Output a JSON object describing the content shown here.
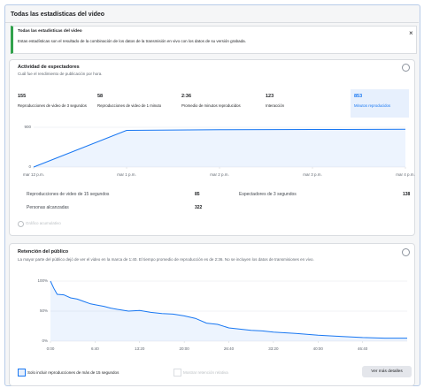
{
  "header": {
    "title": "Todas las estadísticas del video"
  },
  "banner": {
    "title": "Todas las estadísticas del video",
    "text": "Estas estadísticas son el resultado de la combinación de los datos de la transmisión en vivo con los datos de su versión grabada.",
    "close": "×"
  },
  "activity": {
    "title": "Actividad de espectadores",
    "subtitle": "Cuál fue el rendimiento de publicación por hora.",
    "metrics": [
      {
        "value": "155",
        "label": "Reproducciones de video de 3 segundos"
      },
      {
        "value": "58",
        "label": "Reproducciones de video de 1 minuto"
      },
      {
        "value": "2:36",
        "label": "Promedio de minutos reproducidos"
      },
      {
        "value": "123",
        "label": "Interacción"
      },
      {
        "value": "853",
        "label": "Minutos reproducidos"
      }
    ],
    "chart_data": {
      "type": "line",
      "x": [
        0,
        1,
        2,
        3,
        4
      ],
      "values": [
        0,
        830,
        845,
        850,
        853
      ],
      "color": "#1877f2",
      "xlim": [
        0,
        4
      ],
      "xticks": [
        {
          "value": 0,
          "label": "mar 12 p.m."
        },
        {
          "value": 1,
          "label": "mar 1 p.m."
        },
        {
          "value": 2,
          "label": "mar 2 p.m."
        },
        {
          "value": 3,
          "label": "mar 3 p.m."
        },
        {
          "value": 4,
          "label": "mar 4 p.m."
        }
      ],
      "ylim": [
        0,
        900
      ],
      "yticks": [
        0,
        900
      ],
      "grid": true
    },
    "stats": [
      {
        "label": "Reproducciones de video de 15 segundos",
        "value": "85"
      },
      {
        "label": "Espectadores de 3 segundos",
        "value": "138"
      },
      {
        "label": "Personas alcanzadas",
        "value": "322"
      }
    ],
    "cumulative": "Gráfico acumulativo"
  },
  "retention": {
    "title": "Retención del público",
    "description": "La mayor parte del público dejó de ver el video en la marca de 1:40. El tiempo promedio de reproducción es de 2:36. No se incluyen los datos de transmisiones en vivo.",
    "chart_data": {
      "type": "line",
      "x": [
        0,
        30,
        60,
        120,
        180,
        240,
        300,
        360,
        420,
        480,
        540,
        600,
        700,
        800,
        900,
        1000,
        1100,
        1200,
        1300,
        1400,
        1500,
        1600,
        1700,
        1800,
        1900,
        2000,
        2200,
        2400,
        2600,
        2800,
        3000,
        3200
      ],
      "values": [
        100,
        88,
        78,
        77,
        72,
        70,
        66,
        62,
        60,
        58,
        55,
        53,
        50,
        51,
        48,
        46,
        45,
        42,
        38,
        30,
        28,
        22,
        20,
        18,
        17,
        15,
        13,
        10,
        8,
        6,
        5,
        5
      ],
      "color": "#1877f2",
      "xlim": [
        0,
        3200
      ],
      "xticks": [
        {
          "value": 0,
          "label": "0:00"
        },
        {
          "value": 400,
          "label": "6:40"
        },
        {
          "value": 800,
          "label": "13:20"
        },
        {
          "value": 1200,
          "label": "20:00"
        },
        {
          "value": 1600,
          "label": "26:40"
        },
        {
          "value": 2000,
          "label": "33:20"
        },
        {
          "value": 2400,
          "label": "40:00"
        },
        {
          "value": 2800,
          "label": "46:40"
        }
      ],
      "ylim": [
        0,
        100
      ],
      "yticks": [
        {
          "value": 0,
          "label": "0%"
        },
        {
          "value": 50,
          "label": "50%"
        },
        {
          "value": 100,
          "label": "100%"
        }
      ],
      "grid": true
    },
    "only15": "Solo incluir reproducciones de más de 15 segundos",
    "relative": "Mostrar retención relativa",
    "button": "Ver más detalles"
  }
}
